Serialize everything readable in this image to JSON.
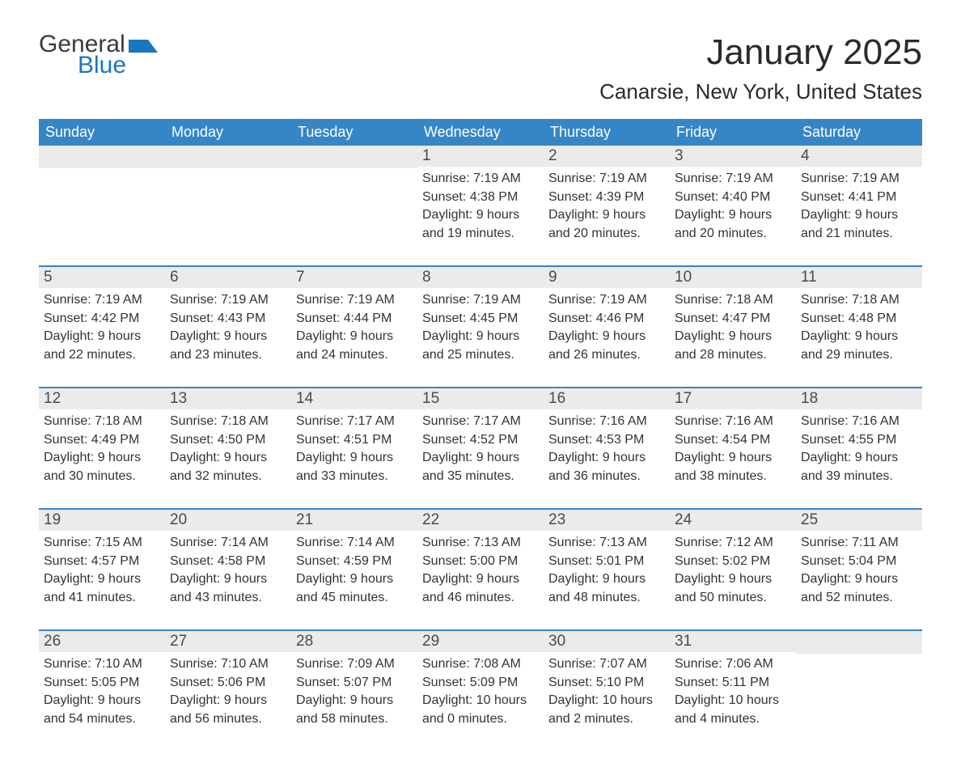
{
  "logo": {
    "general": "General",
    "blue": "Blue",
    "flag_color": "#1976c1"
  },
  "title": "January 2025",
  "location": "Canarsie, New York, United States",
  "colors": {
    "header_bg": "#3586c7",
    "header_text": "#ffffff",
    "day_number_bg": "#ebebeb",
    "week_border": "#3586c7",
    "text": "#333333"
  },
  "weekdays": [
    "Sunday",
    "Monday",
    "Tuesday",
    "Wednesday",
    "Thursday",
    "Friday",
    "Saturday"
  ],
  "weeks": [
    [
      {
        "empty": true
      },
      {
        "empty": true
      },
      {
        "empty": true
      },
      {
        "day": "1",
        "sunrise": "Sunrise: 7:19 AM",
        "sunset": "Sunset: 4:38 PM",
        "daylight1": "Daylight: 9 hours",
        "daylight2": "and 19 minutes."
      },
      {
        "day": "2",
        "sunrise": "Sunrise: 7:19 AM",
        "sunset": "Sunset: 4:39 PM",
        "daylight1": "Daylight: 9 hours",
        "daylight2": "and 20 minutes."
      },
      {
        "day": "3",
        "sunrise": "Sunrise: 7:19 AM",
        "sunset": "Sunset: 4:40 PM",
        "daylight1": "Daylight: 9 hours",
        "daylight2": "and 20 minutes."
      },
      {
        "day": "4",
        "sunrise": "Sunrise: 7:19 AM",
        "sunset": "Sunset: 4:41 PM",
        "daylight1": "Daylight: 9 hours",
        "daylight2": "and 21 minutes."
      }
    ],
    [
      {
        "day": "5",
        "sunrise": "Sunrise: 7:19 AM",
        "sunset": "Sunset: 4:42 PM",
        "daylight1": "Daylight: 9 hours",
        "daylight2": "and 22 minutes."
      },
      {
        "day": "6",
        "sunrise": "Sunrise: 7:19 AM",
        "sunset": "Sunset: 4:43 PM",
        "daylight1": "Daylight: 9 hours",
        "daylight2": "and 23 minutes."
      },
      {
        "day": "7",
        "sunrise": "Sunrise: 7:19 AM",
        "sunset": "Sunset: 4:44 PM",
        "daylight1": "Daylight: 9 hours",
        "daylight2": "and 24 minutes."
      },
      {
        "day": "8",
        "sunrise": "Sunrise: 7:19 AM",
        "sunset": "Sunset: 4:45 PM",
        "daylight1": "Daylight: 9 hours",
        "daylight2": "and 25 minutes."
      },
      {
        "day": "9",
        "sunrise": "Sunrise: 7:19 AM",
        "sunset": "Sunset: 4:46 PM",
        "daylight1": "Daylight: 9 hours",
        "daylight2": "and 26 minutes."
      },
      {
        "day": "10",
        "sunrise": "Sunrise: 7:18 AM",
        "sunset": "Sunset: 4:47 PM",
        "daylight1": "Daylight: 9 hours",
        "daylight2": "and 28 minutes."
      },
      {
        "day": "11",
        "sunrise": "Sunrise: 7:18 AM",
        "sunset": "Sunset: 4:48 PM",
        "daylight1": "Daylight: 9 hours",
        "daylight2": "and 29 minutes."
      }
    ],
    [
      {
        "day": "12",
        "sunrise": "Sunrise: 7:18 AM",
        "sunset": "Sunset: 4:49 PM",
        "daylight1": "Daylight: 9 hours",
        "daylight2": "and 30 minutes."
      },
      {
        "day": "13",
        "sunrise": "Sunrise: 7:18 AM",
        "sunset": "Sunset: 4:50 PM",
        "daylight1": "Daylight: 9 hours",
        "daylight2": "and 32 minutes."
      },
      {
        "day": "14",
        "sunrise": "Sunrise: 7:17 AM",
        "sunset": "Sunset: 4:51 PM",
        "daylight1": "Daylight: 9 hours",
        "daylight2": "and 33 minutes."
      },
      {
        "day": "15",
        "sunrise": "Sunrise: 7:17 AM",
        "sunset": "Sunset: 4:52 PM",
        "daylight1": "Daylight: 9 hours",
        "daylight2": "and 35 minutes."
      },
      {
        "day": "16",
        "sunrise": "Sunrise: 7:16 AM",
        "sunset": "Sunset: 4:53 PM",
        "daylight1": "Daylight: 9 hours",
        "daylight2": "and 36 minutes."
      },
      {
        "day": "17",
        "sunrise": "Sunrise: 7:16 AM",
        "sunset": "Sunset: 4:54 PM",
        "daylight1": "Daylight: 9 hours",
        "daylight2": "and 38 minutes."
      },
      {
        "day": "18",
        "sunrise": "Sunrise: 7:16 AM",
        "sunset": "Sunset: 4:55 PM",
        "daylight1": "Daylight: 9 hours",
        "daylight2": "and 39 minutes."
      }
    ],
    [
      {
        "day": "19",
        "sunrise": "Sunrise: 7:15 AM",
        "sunset": "Sunset: 4:57 PM",
        "daylight1": "Daylight: 9 hours",
        "daylight2": "and 41 minutes."
      },
      {
        "day": "20",
        "sunrise": "Sunrise: 7:14 AM",
        "sunset": "Sunset: 4:58 PM",
        "daylight1": "Daylight: 9 hours",
        "daylight2": "and 43 minutes."
      },
      {
        "day": "21",
        "sunrise": "Sunrise: 7:14 AM",
        "sunset": "Sunset: 4:59 PM",
        "daylight1": "Daylight: 9 hours",
        "daylight2": "and 45 minutes."
      },
      {
        "day": "22",
        "sunrise": "Sunrise: 7:13 AM",
        "sunset": "Sunset: 5:00 PM",
        "daylight1": "Daylight: 9 hours",
        "daylight2": "and 46 minutes."
      },
      {
        "day": "23",
        "sunrise": "Sunrise: 7:13 AM",
        "sunset": "Sunset: 5:01 PM",
        "daylight1": "Daylight: 9 hours",
        "daylight2": "and 48 minutes."
      },
      {
        "day": "24",
        "sunrise": "Sunrise: 7:12 AM",
        "sunset": "Sunset: 5:02 PM",
        "daylight1": "Daylight: 9 hours",
        "daylight2": "and 50 minutes."
      },
      {
        "day": "25",
        "sunrise": "Sunrise: 7:11 AM",
        "sunset": "Sunset: 5:04 PM",
        "daylight1": "Daylight: 9 hours",
        "daylight2": "and 52 minutes."
      }
    ],
    [
      {
        "day": "26",
        "sunrise": "Sunrise: 7:10 AM",
        "sunset": "Sunset: 5:05 PM",
        "daylight1": "Daylight: 9 hours",
        "daylight2": "and 54 minutes."
      },
      {
        "day": "27",
        "sunrise": "Sunrise: 7:10 AM",
        "sunset": "Sunset: 5:06 PM",
        "daylight1": "Daylight: 9 hours",
        "daylight2": "and 56 minutes."
      },
      {
        "day": "28",
        "sunrise": "Sunrise: 7:09 AM",
        "sunset": "Sunset: 5:07 PM",
        "daylight1": "Daylight: 9 hours",
        "daylight2": "and 58 minutes."
      },
      {
        "day": "29",
        "sunrise": "Sunrise: 7:08 AM",
        "sunset": "Sunset: 5:09 PM",
        "daylight1": "Daylight: 10 hours",
        "daylight2": "and 0 minutes."
      },
      {
        "day": "30",
        "sunrise": "Sunrise: 7:07 AM",
        "sunset": "Sunset: 5:10 PM",
        "daylight1": "Daylight: 10 hours",
        "daylight2": "and 2 minutes."
      },
      {
        "day": "31",
        "sunrise": "Sunrise: 7:06 AM",
        "sunset": "Sunset: 5:11 PM",
        "daylight1": "Daylight: 10 hours",
        "daylight2": "and 4 minutes."
      },
      {
        "empty": true
      }
    ]
  ]
}
